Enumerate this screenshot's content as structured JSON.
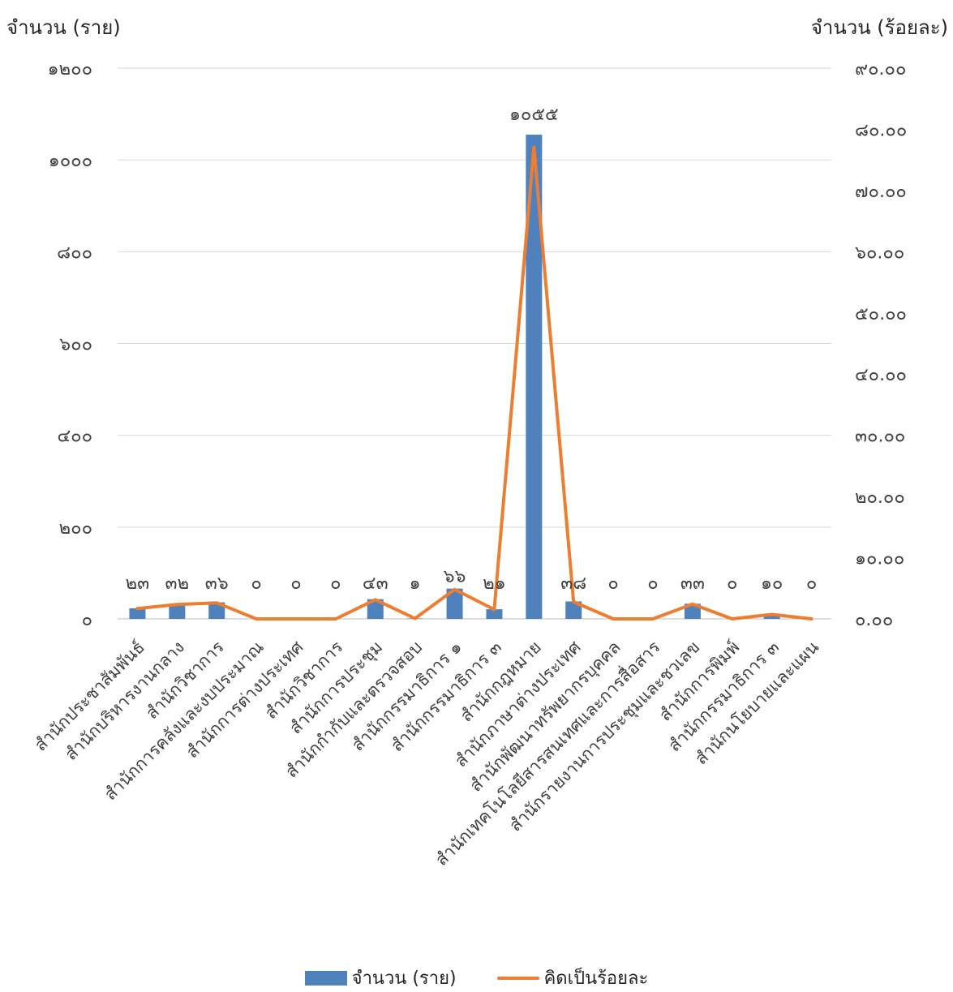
{
  "chart_data": {
    "type": "bar",
    "y_left_title": "จำนวน (ราย)",
    "y_right_title": "จำนวน (ร้อยละ)",
    "categories": [
      "สำนักประชาสัมพันธ์",
      "สำนักบริหารงานกลาง",
      "สำนักวิชาการ",
      "สำนักการคลังและงบประมาณ",
      "สำนักการต่างประเทศ",
      "สำนักวิชาการ",
      "สำนักการประชุม",
      "สำนักกำกับและตรวจสอบ",
      "สำนักกรรมาธิการ ๑",
      "สำนักกรรมาธิการ ๓",
      "สำนักกฎหมาย",
      "สำนักภาษาต่างประเทศ",
      "สำนักพัฒนาทรัพยากรบุคคล",
      "สำนักเทคโนโลยีสารสนเทศและการสื่อสาร",
      "สำนักรายงานการประชุมและชวเลข",
      "สำนักการพิมพ์",
      "สำนักกรรมาธิการ ๓",
      "สำนักนโยบายและแผน"
    ],
    "series": [
      {
        "name": "จำนวน (ราย)",
        "type": "bar",
        "axis": "left",
        "color": "#4F81BD",
        "values": [
          23,
          32,
          36,
          0,
          0,
          0,
          43,
          1,
          66,
          21,
          1055,
          38,
          0,
          0,
          33,
          0,
          10,
          0
        ],
        "labels": [
          "๒๓",
          "๓๒",
          "๓๖",
          "๐",
          "๐",
          "๐",
          "๔๓",
          "๑",
          "๖๖",
          "๒๑",
          "๑๐๕๕",
          "๓๘",
          "๐",
          "๐",
          "๓๓",
          "๐",
          "๑๐",
          "๐"
        ]
      },
      {
        "name": "คิดเป็นร้อยละ",
        "type": "line",
        "axis": "right",
        "color": "#ED7D31",
        "values": [
          1.68,
          2.34,
          2.63,
          0,
          0,
          0,
          3.14,
          0.07,
          4.82,
          1.53,
          77.06,
          2.78,
          0,
          0,
          2.41,
          0,
          0.73,
          0
        ]
      }
    ],
    "y_left": {
      "min": 0,
      "max": 1200,
      "ticks": [
        0,
        200,
        400,
        600,
        800,
        1000,
        1200
      ],
      "tick_labels": [
        "๐",
        "๒๐๐",
        "๔๐๐",
        "๖๐๐",
        "๘๐๐",
        "๑๐๐๐",
        "๑๒๐๐"
      ]
    },
    "y_right": {
      "min": 0,
      "max": 90,
      "ticks": [
        0,
        10,
        20,
        30,
        40,
        50,
        60,
        70,
        80,
        90
      ],
      "tick_labels": [
        "๐.๐๐",
        "๑๐.๐๐",
        "๒๐.๐๐",
        "๓๐.๐๐",
        "๔๐.๐๐",
        "๕๐.๐๐",
        "๖๐.๐๐",
        "๗๐.๐๐",
        "๘๐.๐๐",
        "๙๐.๐๐"
      ]
    },
    "grid": true,
    "legend_position": "bottom"
  }
}
